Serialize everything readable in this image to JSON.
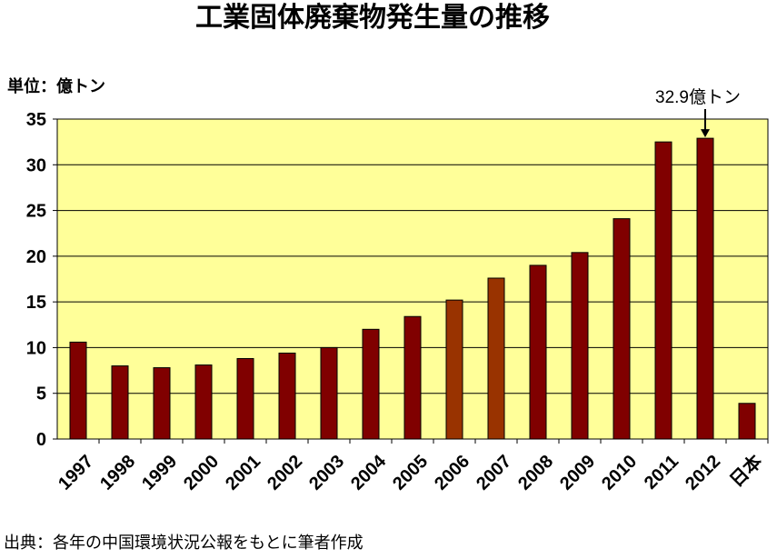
{
  "chart_data": {
    "type": "bar",
    "title": "工業固体廃棄物発生量の推移",
    "unit_label": "単位：億トン",
    "ylim": [
      0,
      35
    ],
    "yticks": [
      0,
      5,
      10,
      15,
      20,
      25,
      30,
      35
    ],
    "grid": true,
    "categories": [
      "1997",
      "1998",
      "1999",
      "2000",
      "2001",
      "2002",
      "2003",
      "2004",
      "2005",
      "2006",
      "2007",
      "2008",
      "2009",
      "2010",
      "2011",
      "2012",
      "日本"
    ],
    "values": [
      10.6,
      8.0,
      7.8,
      8.1,
      8.8,
      9.4,
      10.0,
      12.0,
      13.4,
      15.2,
      17.6,
      19.0,
      20.4,
      24.1,
      32.5,
      32.9,
      3.9
    ],
    "colors": [
      "#800000",
      "#800000",
      "#800000",
      "#800000",
      "#800000",
      "#800000",
      "#800000",
      "#800000",
      "#800000",
      "#993300",
      "#993300",
      "#800000",
      "#800000",
      "#800000",
      "#800000",
      "#800000",
      "#800000"
    ],
    "plot_background": "#ffff99",
    "annotation": {
      "text": "32.9億トン",
      "category": "2012"
    },
    "source": "出典：各年の中国環境状況公報をもとに筆者作成"
  }
}
